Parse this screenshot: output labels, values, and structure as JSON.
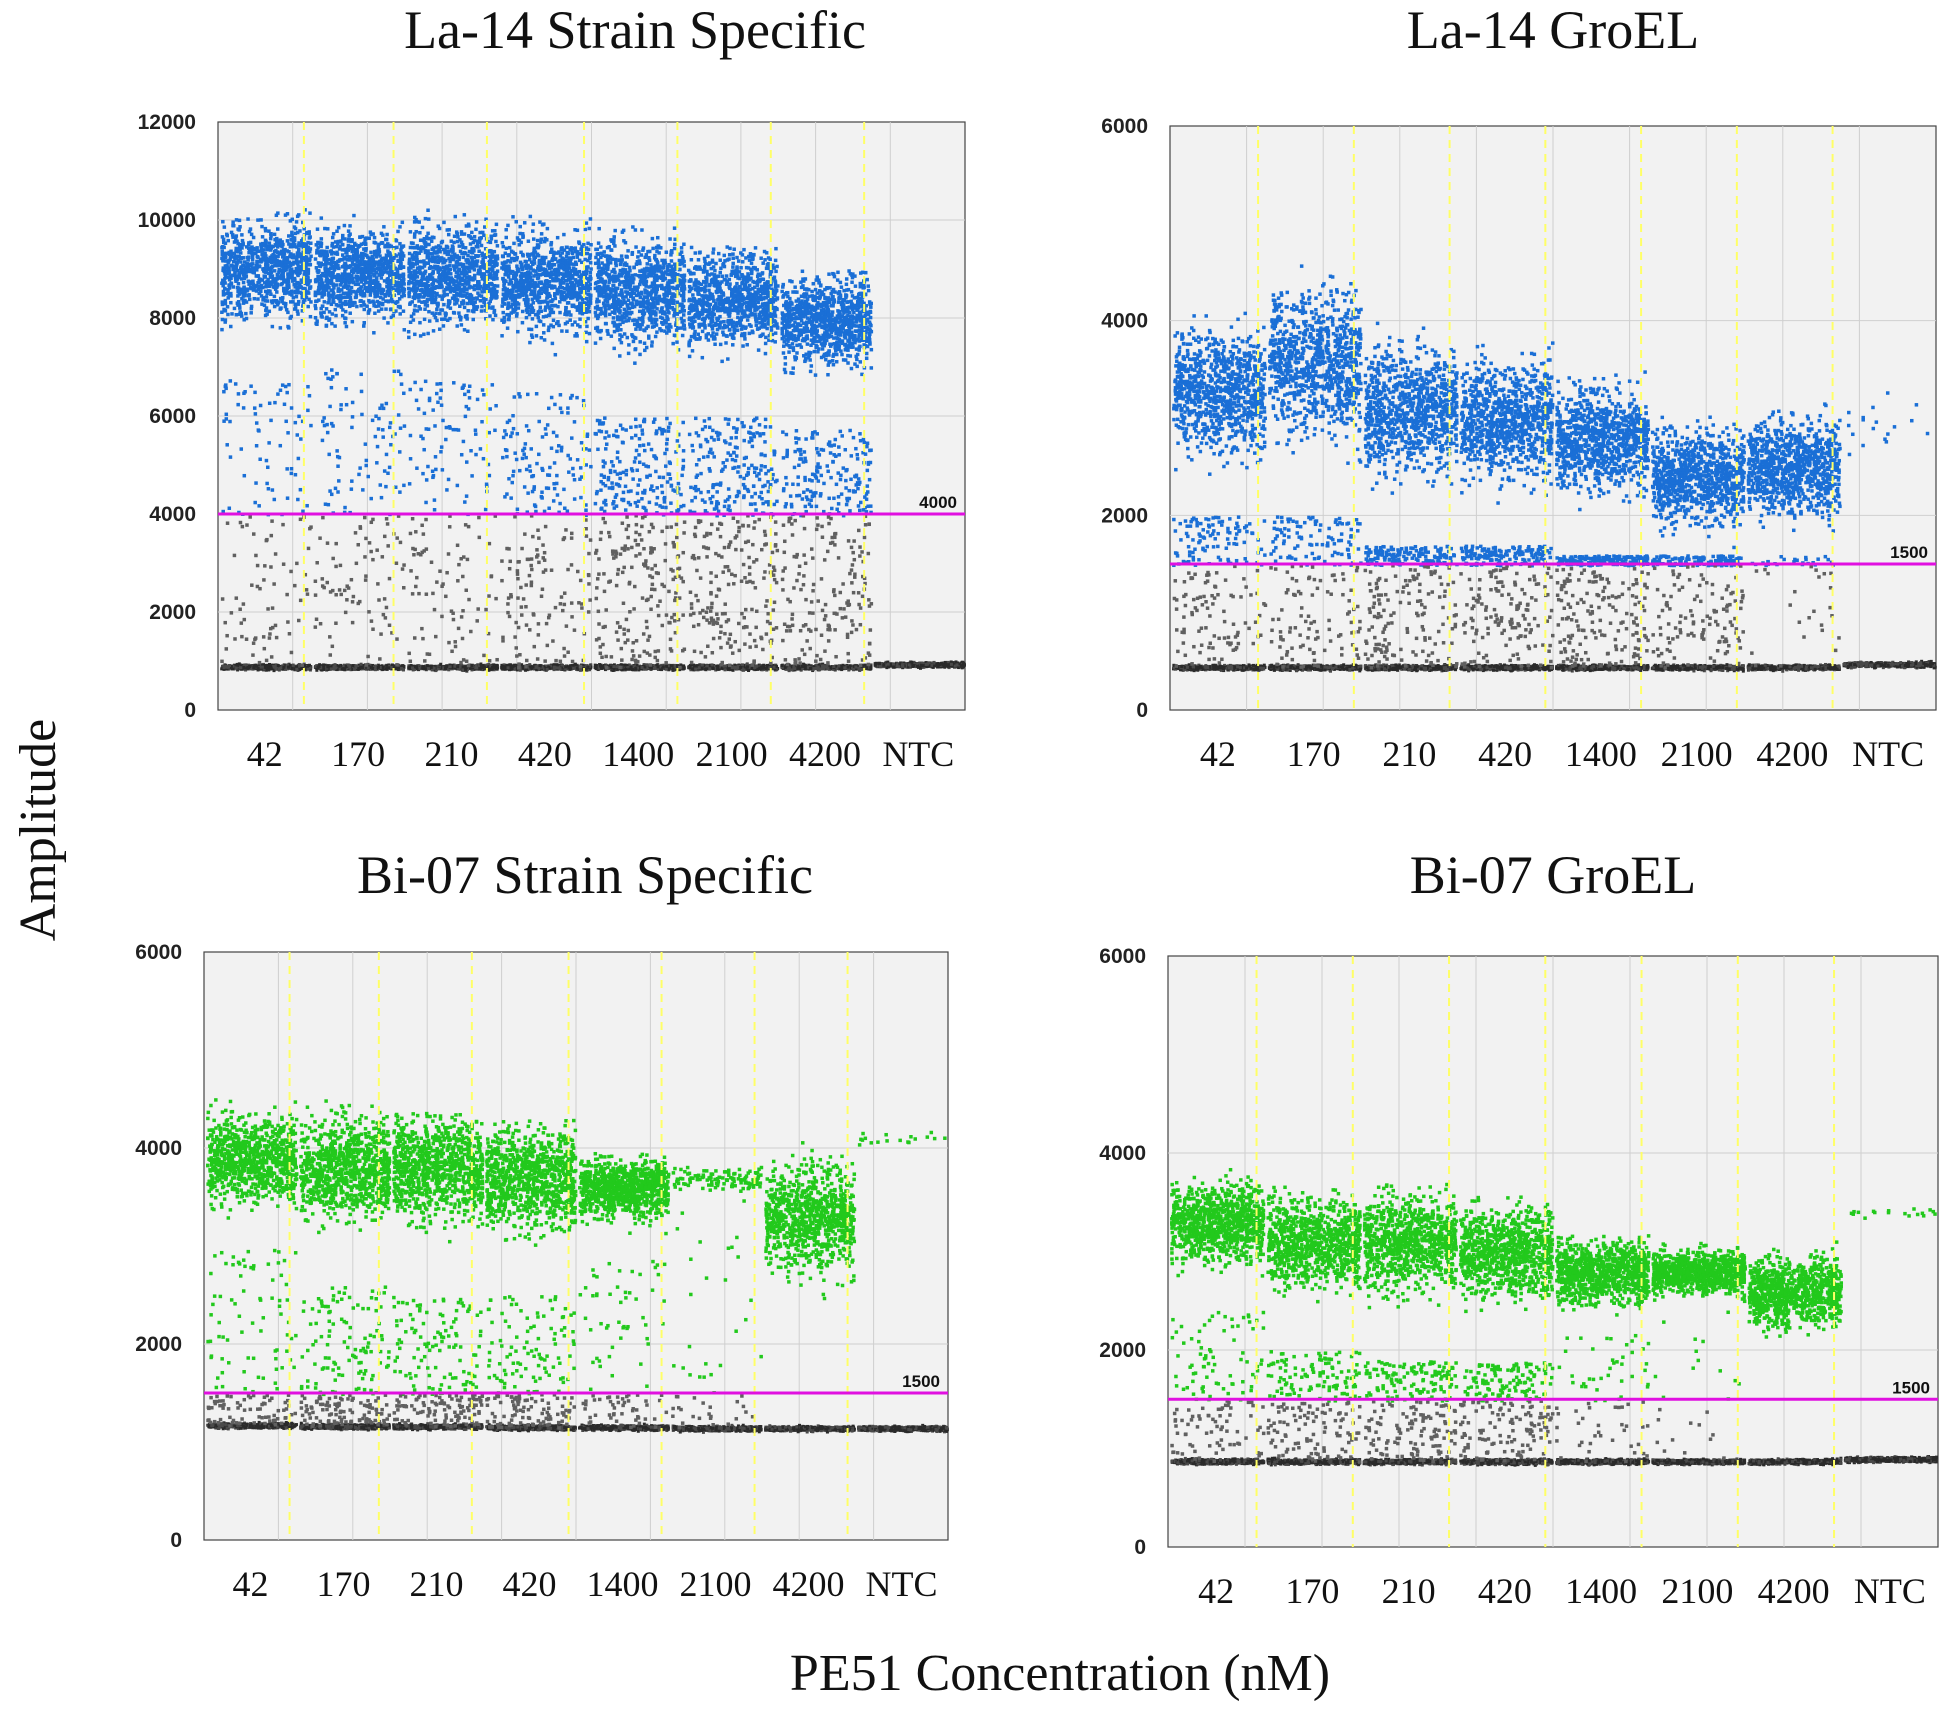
{
  "figure": {
    "ylabel": "Amplitude",
    "xlabel": "PE51 Concentration (nM)"
  },
  "colors": {
    "blue": "#1a6fd6",
    "green": "#22c91c",
    "negative": "#606060",
    "baseline": "#2a2a2a",
    "threshold": "#e010e0",
    "separator": "#ffff66",
    "grid": "#cfcfcf",
    "plot_bg": "#f2f2f2"
  },
  "chart_data": [
    {
      "type": "scatter",
      "title": "La-14 Strain Specific",
      "categories": [
        "42",
        "170",
        "210",
        "420",
        "1400",
        "2100",
        "4200",
        "NTC"
      ],
      "ylim": [
        0,
        12000
      ],
      "yticks": [
        0,
        2000,
        4000,
        6000,
        8000,
        10000,
        12000
      ],
      "threshold": 4000,
      "threshold_label": "4000",
      "positive_color": "blue",
      "series": {
        "positive_upper": [
          10300,
          10400,
          10400,
          10200,
          9900,
          9500,
          9000,
          0
        ],
        "positive_center": [
          9000,
          8900,
          8900,
          8800,
          8600,
          8400,
          8000,
          0
        ],
        "positive_lower": [
          6800,
          7000,
          6800,
          6500,
          6000,
          6000,
          5800,
          0
        ],
        "rain_density": [
          0.3,
          0.35,
          0.35,
          0.5,
          0.8,
          0.8,
          0.7,
          0
        ],
        "baseline": [
          900,
          900,
          900,
          900,
          900,
          900,
          900,
          950
        ]
      }
    },
    {
      "type": "scatter",
      "title": "La-14 GroEL",
      "categories": [
        "42",
        "170",
        "210",
        "420",
        "1400",
        "2100",
        "4200",
        "NTC"
      ],
      "ylim": [
        0,
        6000
      ],
      "yticks": [
        0,
        2000,
        4000,
        6000
      ],
      "threshold": 1500,
      "threshold_label": "1500",
      "positive_color": "blue",
      "series": {
        "positive_upper": [
          4300,
          4700,
          4000,
          3900,
          3500,
          3300,
          3400,
          3600
        ],
        "positive_center": [
          3300,
          3600,
          3100,
          3000,
          2800,
          2400,
          2500,
          3000
        ],
        "positive_lower": [
          2000,
          2000,
          1700,
          1700,
          1600,
          1600,
          1600,
          2500
        ],
        "rain_density": [
          0.4,
          0.4,
          0.6,
          0.6,
          0.7,
          0.5,
          0.1,
          0
        ],
        "baseline": [
          450,
          450,
          450,
          450,
          450,
          450,
          450,
          480
        ]
      }
    },
    {
      "type": "scatter",
      "title": "Bi-07 Strain Specific",
      "categories": [
        "42",
        "170",
        "210",
        "420",
        "1400",
        "2100",
        "4200",
        "NTC"
      ],
      "ylim": [
        0,
        6000
      ],
      "yticks": [
        0,
        2000,
        4000,
        6000
      ],
      "threshold": 1500,
      "threshold_label": "1500",
      "positive_color": "green",
      "series": {
        "positive_upper": [
          4600,
          4500,
          4400,
          4300,
          4100,
          3900,
          4200,
          4200
        ],
        "positive_center": [
          3900,
          3800,
          3800,
          3700,
          3600,
          3700,
          3300,
          4100
        ],
        "positive_lower": [
          3000,
          2600,
          2500,
          2500,
          3000,
          3500,
          2200,
          3900
        ],
        "rain_density": [
          0.3,
          0.45,
          0.45,
          0.4,
          0.2,
          0.1,
          0,
          0
        ],
        "baseline": [
          1180,
          1170,
          1170,
          1160,
          1160,
          1150,
          1150,
          1150
        ]
      }
    },
    {
      "type": "scatter",
      "title": "Bi-07 GroEL",
      "categories": [
        "42",
        "170",
        "210",
        "420",
        "1400",
        "2100",
        "4200",
        "NTC"
      ],
      "ylim": [
        0,
        6000
      ],
      "yticks": [
        0,
        2000,
        4000,
        6000
      ],
      "threshold": 1500,
      "threshold_label": "1500",
      "positive_color": "green",
      "series": {
        "positive_upper": [
          3900,
          3700,
          3700,
          3600,
          3400,
          3300,
          3300,
          3500
        ],
        "positive_center": [
          3300,
          3100,
          3100,
          3000,
          2800,
          2800,
          2600,
          3400
        ],
        "positive_lower": [
          2400,
          2000,
          1900,
          1900,
          2200,
          2500,
          2000,
          3300
        ],
        "rain_density": [
          0.3,
          0.45,
          0.5,
          0.5,
          0.15,
          0.05,
          0,
          0
        ],
        "baseline": [
          880,
          880,
          880,
          880,
          880,
          880,
          880,
          900
        ]
      }
    }
  ]
}
